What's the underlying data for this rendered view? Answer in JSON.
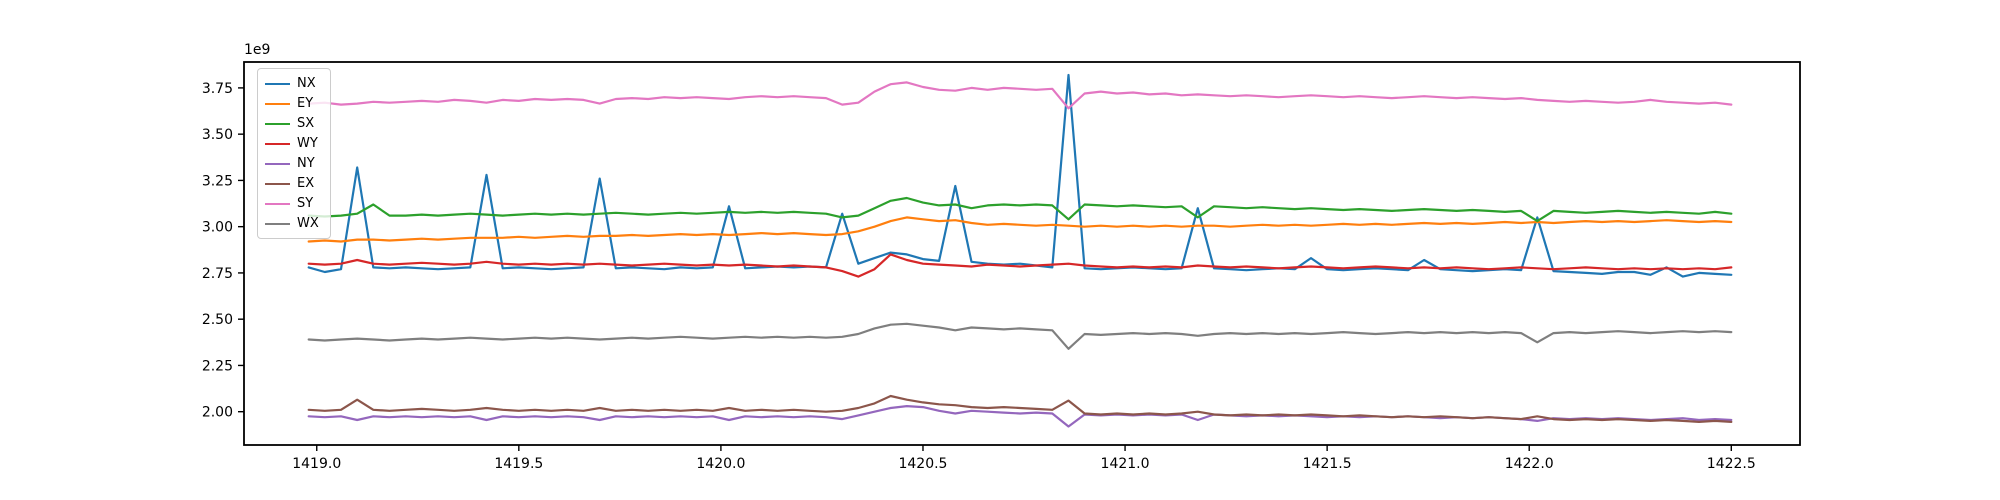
{
  "figure": {
    "kind": "matplotlib-line-figure"
  },
  "chart_data": {
    "type": "line",
    "title": "",
    "xlabel": "",
    "ylabel": "",
    "offset_text": "1e9",
    "grid": false,
    "legend_position": "upper-left",
    "xlim": [
      1418.82,
      1422.67
    ],
    "ylim": [
      1.82,
      3.89
    ],
    "x_ticks": [
      1419.0,
      1419.5,
      1420.0,
      1420.5,
      1421.0,
      1421.5,
      1422.0,
      1422.5
    ],
    "x_tick_labels": [
      "1419.0",
      "1419.5",
      "1420.0",
      "1420.5",
      "1421.0",
      "1421.5",
      "1422.0",
      "1422.5"
    ],
    "y_ticks": [
      2.0,
      2.25,
      2.5,
      2.75,
      3.0,
      3.25,
      3.5,
      3.75
    ],
    "y_tick_labels": [
      "2.00",
      "2.25",
      "2.50",
      "2.75",
      "3.00",
      "3.25",
      "3.50",
      "3.75"
    ],
    "y_value_scale": 1000000000,
    "x_start": 1418.98,
    "x_step": 0.04,
    "series": [
      {
        "name": "NX",
        "color": "#1f77b4",
        "values": [
          2.78,
          2.755,
          2.77,
          3.32,
          2.78,
          2.775,
          2.78,
          2.775,
          2.77,
          2.775,
          2.78,
          3.28,
          2.775,
          2.78,
          2.775,
          2.77,
          2.775,
          2.78,
          3.26,
          2.775,
          2.78,
          2.775,
          2.77,
          2.78,
          2.775,
          2.78,
          3.11,
          2.775,
          2.78,
          2.785,
          2.78,
          2.785,
          2.78,
          3.07,
          2.8,
          2.83,
          2.86,
          2.85,
          2.825,
          2.815,
          3.22,
          2.81,
          2.8,
          2.795,
          2.8,
          2.79,
          2.78,
          3.82,
          2.775,
          2.77,
          2.775,
          2.78,
          2.775,
          2.77,
          2.775,
          3.1,
          2.775,
          2.77,
          2.765,
          2.77,
          2.775,
          2.77,
          2.83,
          2.77,
          2.765,
          2.77,
          2.775,
          2.77,
          2.765,
          2.82,
          2.77,
          2.765,
          2.76,
          2.765,
          2.77,
          2.765,
          3.05,
          2.76,
          2.755,
          2.75,
          2.745,
          2.755,
          2.755,
          2.74,
          2.78,
          2.73,
          2.75,
          2.745,
          2.74
        ]
      },
      {
        "name": "EY",
        "color": "#ff7f0e",
        "values": [
          2.92,
          2.925,
          2.92,
          2.93,
          2.93,
          2.925,
          2.93,
          2.935,
          2.93,
          2.935,
          2.94,
          2.94,
          2.94,
          2.945,
          2.94,
          2.945,
          2.95,
          2.945,
          2.95,
          2.95,
          2.955,
          2.95,
          2.955,
          2.96,
          2.955,
          2.96,
          2.955,
          2.96,
          2.965,
          2.96,
          2.965,
          2.96,
          2.955,
          2.96,
          2.975,
          3.0,
          3.03,
          3.05,
          3.04,
          3.03,
          3.035,
          3.02,
          3.01,
          3.015,
          3.01,
          3.005,
          3.01,
          3.005,
          3.0,
          3.005,
          3.0,
          3.005,
          3.0,
          3.005,
          3.0,
          3.005,
          3.005,
          3.0,
          3.005,
          3.01,
          3.005,
          3.01,
          3.005,
          3.01,
          3.015,
          3.01,
          3.015,
          3.01,
          3.015,
          3.02,
          3.015,
          3.02,
          3.015,
          3.02,
          3.025,
          3.02,
          3.025,
          3.02,
          3.025,
          3.03,
          3.025,
          3.03,
          3.025,
          3.03,
          3.035,
          3.03,
          3.025,
          3.03,
          3.025
        ]
      },
      {
        "name": "SX",
        "color": "#2ca02c",
        "values": [
          3.06,
          3.055,
          3.06,
          3.07,
          3.12,
          3.06,
          3.06,
          3.065,
          3.06,
          3.065,
          3.07,
          3.065,
          3.06,
          3.065,
          3.07,
          3.065,
          3.07,
          3.065,
          3.07,
          3.075,
          3.07,
          3.065,
          3.07,
          3.075,
          3.07,
          3.075,
          3.08,
          3.075,
          3.08,
          3.075,
          3.08,
          3.075,
          3.07,
          3.05,
          3.06,
          3.1,
          3.14,
          3.155,
          3.13,
          3.115,
          3.12,
          3.1,
          3.115,
          3.12,
          3.115,
          3.12,
          3.115,
          3.04,
          3.12,
          3.115,
          3.11,
          3.115,
          3.11,
          3.105,
          3.11,
          3.05,
          3.11,
          3.105,
          3.1,
          3.105,
          3.1,
          3.095,
          3.1,
          3.095,
          3.09,
          3.095,
          3.09,
          3.085,
          3.09,
          3.095,
          3.09,
          3.085,
          3.09,
          3.085,
          3.08,
          3.085,
          3.03,
          3.085,
          3.08,
          3.075,
          3.08,
          3.085,
          3.08,
          3.075,
          3.08,
          3.075,
          3.07,
          3.08,
          3.07
        ]
      },
      {
        "name": "WY",
        "color": "#d62728",
        "values": [
          2.8,
          2.795,
          2.8,
          2.82,
          2.8,
          2.795,
          2.8,
          2.805,
          2.8,
          2.795,
          2.8,
          2.81,
          2.8,
          2.795,
          2.8,
          2.795,
          2.8,
          2.795,
          2.8,
          2.795,
          2.79,
          2.795,
          2.8,
          2.795,
          2.79,
          2.795,
          2.79,
          2.795,
          2.79,
          2.785,
          2.79,
          2.785,
          2.78,
          2.76,
          2.73,
          2.77,
          2.85,
          2.82,
          2.8,
          2.795,
          2.79,
          2.785,
          2.795,
          2.79,
          2.785,
          2.79,
          2.795,
          2.8,
          2.79,
          2.785,
          2.78,
          2.785,
          2.78,
          2.785,
          2.78,
          2.79,
          2.785,
          2.78,
          2.785,
          2.78,
          2.775,
          2.78,
          2.785,
          2.78,
          2.775,
          2.78,
          2.785,
          2.78,
          2.775,
          2.78,
          2.775,
          2.78,
          2.775,
          2.77,
          2.775,
          2.78,
          2.775,
          2.77,
          2.775,
          2.78,
          2.775,
          2.77,
          2.775,
          2.77,
          2.775,
          2.77,
          2.775,
          2.77,
          2.78
        ]
      },
      {
        "name": "NY",
        "color": "#9467bd",
        "values": [
          1.975,
          1.97,
          1.975,
          1.955,
          1.975,
          1.97,
          1.975,
          1.97,
          1.975,
          1.97,
          1.975,
          1.955,
          1.975,
          1.97,
          1.975,
          1.97,
          1.975,
          1.97,
          1.955,
          1.975,
          1.97,
          1.975,
          1.97,
          1.975,
          1.97,
          1.975,
          1.955,
          1.975,
          1.97,
          1.975,
          1.97,
          1.975,
          1.97,
          1.96,
          1.98,
          2.0,
          2.02,
          2.03,
          2.025,
          2.005,
          1.99,
          2.005,
          2.0,
          1.995,
          1.99,
          1.995,
          1.99,
          1.92,
          1.985,
          1.98,
          1.985,
          1.98,
          1.985,
          1.98,
          1.985,
          1.955,
          1.985,
          1.98,
          1.975,
          1.98,
          1.975,
          1.98,
          1.975,
          1.97,
          1.975,
          1.97,
          1.975,
          1.97,
          1.975,
          1.97,
          1.965,
          1.97,
          1.965,
          1.97,
          1.965,
          1.96,
          1.95,
          1.965,
          1.96,
          1.965,
          1.96,
          1.965,
          1.96,
          1.955,
          1.96,
          1.965,
          1.955,
          1.96,
          1.955
        ]
      },
      {
        "name": "EX",
        "color": "#8c564b",
        "values": [
          2.01,
          2.005,
          2.01,
          2.065,
          2.01,
          2.005,
          2.01,
          2.015,
          2.01,
          2.005,
          2.01,
          2.02,
          2.01,
          2.005,
          2.01,
          2.005,
          2.01,
          2.005,
          2.02,
          2.005,
          2.01,
          2.005,
          2.01,
          2.005,
          2.01,
          2.005,
          2.02,
          2.005,
          2.01,
          2.005,
          2.01,
          2.005,
          2.0,
          2.005,
          2.02,
          2.045,
          2.085,
          2.065,
          2.05,
          2.04,
          2.035,
          2.025,
          2.02,
          2.025,
          2.02,
          2.015,
          2.01,
          2.06,
          1.99,
          1.985,
          1.99,
          1.985,
          1.99,
          1.985,
          1.99,
          2.0,
          1.985,
          1.98,
          1.985,
          1.98,
          1.985,
          1.98,
          1.985,
          1.98,
          1.975,
          1.98,
          1.975,
          1.97,
          1.975,
          1.97,
          1.975,
          1.97,
          1.965,
          1.97,
          1.965,
          1.96,
          1.975,
          1.96,
          1.955,
          1.96,
          1.955,
          1.96,
          1.955,
          1.95,
          1.955,
          1.95,
          1.945,
          1.95,
          1.945
        ]
      },
      {
        "name": "SY",
        "color": "#e377c2",
        "values": [
          3.665,
          3.67,
          3.66,
          3.665,
          3.675,
          3.67,
          3.675,
          3.68,
          3.675,
          3.685,
          3.68,
          3.67,
          3.685,
          3.68,
          3.69,
          3.685,
          3.69,
          3.685,
          3.665,
          3.69,
          3.695,
          3.69,
          3.7,
          3.695,
          3.7,
          3.695,
          3.69,
          3.7,
          3.705,
          3.7,
          3.705,
          3.7,
          3.695,
          3.66,
          3.67,
          3.73,
          3.77,
          3.78,
          3.755,
          3.74,
          3.735,
          3.75,
          3.74,
          3.75,
          3.745,
          3.74,
          3.745,
          3.64,
          3.72,
          3.73,
          3.72,
          3.725,
          3.715,
          3.72,
          3.71,
          3.715,
          3.71,
          3.705,
          3.71,
          3.705,
          3.7,
          3.705,
          3.71,
          3.705,
          3.7,
          3.705,
          3.7,
          3.695,
          3.7,
          3.705,
          3.7,
          3.695,
          3.7,
          3.695,
          3.69,
          3.695,
          3.685,
          3.68,
          3.675,
          3.68,
          3.675,
          3.67,
          3.675,
          3.685,
          3.675,
          3.67,
          3.665,
          3.67,
          3.66
        ]
      },
      {
        "name": "WX",
        "color": "#7f7f7f",
        "values": [
          2.39,
          2.385,
          2.39,
          2.395,
          2.39,
          2.385,
          2.39,
          2.395,
          2.39,
          2.395,
          2.4,
          2.395,
          2.39,
          2.395,
          2.4,
          2.395,
          2.4,
          2.395,
          2.39,
          2.395,
          2.4,
          2.395,
          2.4,
          2.405,
          2.4,
          2.395,
          2.4,
          2.405,
          2.4,
          2.405,
          2.4,
          2.405,
          2.4,
          2.405,
          2.42,
          2.45,
          2.47,
          2.475,
          2.465,
          2.455,
          2.44,
          2.455,
          2.45,
          2.445,
          2.45,
          2.445,
          2.44,
          2.34,
          2.42,
          2.415,
          2.42,
          2.425,
          2.42,
          2.425,
          2.42,
          2.41,
          2.42,
          2.425,
          2.42,
          2.425,
          2.42,
          2.425,
          2.42,
          2.425,
          2.43,
          2.425,
          2.42,
          2.425,
          2.43,
          2.425,
          2.43,
          2.425,
          2.43,
          2.425,
          2.43,
          2.425,
          2.375,
          2.425,
          2.43,
          2.425,
          2.43,
          2.435,
          2.43,
          2.425,
          2.43,
          2.435,
          2.43,
          2.435,
          2.43
        ]
      }
    ]
  }
}
